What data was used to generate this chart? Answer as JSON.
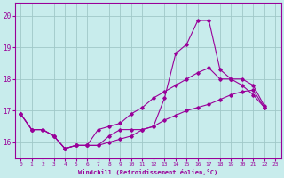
{
  "xlabel": "Windchill (Refroidissement éolien,°C)",
  "ylabel": "",
  "background_color": "#c8ecec",
  "grid_color": "#a0c8c8",
  "line_color": "#990099",
  "xlim": [
    -0.5,
    23.5
  ],
  "ylim": [
    15.5,
    20.4
  ],
  "xticks": [
    0,
    1,
    2,
    3,
    4,
    5,
    6,
    7,
    8,
    9,
    10,
    11,
    12,
    13,
    14,
    15,
    16,
    17,
    18,
    19,
    20,
    21,
    22,
    23
  ],
  "yticks": [
    16,
    17,
    18,
    19,
    20
  ],
  "x_hours": [
    0,
    1,
    2,
    3,
    4,
    5,
    6,
    7,
    8,
    9,
    10,
    11,
    12,
    13,
    14,
    15,
    16,
    17,
    18,
    19,
    20,
    21,
    22,
    23
  ],
  "line1_y": [
    16.9,
    16.4,
    16.4,
    16.2,
    15.8,
    15.9,
    15.9,
    15.9,
    16.2,
    16.4,
    16.4,
    16.4,
    16.5,
    17.4,
    18.8,
    19.1,
    19.85,
    19.85,
    18.3,
    18.0,
    17.8,
    17.5,
    17.1,
    null
  ],
  "line2_y": [
    16.9,
    16.4,
    16.4,
    16.2,
    15.8,
    15.9,
    15.9,
    16.4,
    16.5,
    16.6,
    16.9,
    17.1,
    17.4,
    17.6,
    17.8,
    18.0,
    18.2,
    18.35,
    18.0,
    18.0,
    18.0,
    17.8,
    17.15,
    null
  ],
  "line3_y": [
    16.9,
    16.4,
    16.4,
    16.2,
    15.8,
    15.9,
    15.9,
    15.9,
    16.0,
    16.1,
    16.2,
    16.4,
    16.5,
    16.7,
    16.85,
    17.0,
    17.1,
    17.2,
    17.35,
    17.5,
    17.6,
    17.65,
    17.1,
    null
  ]
}
